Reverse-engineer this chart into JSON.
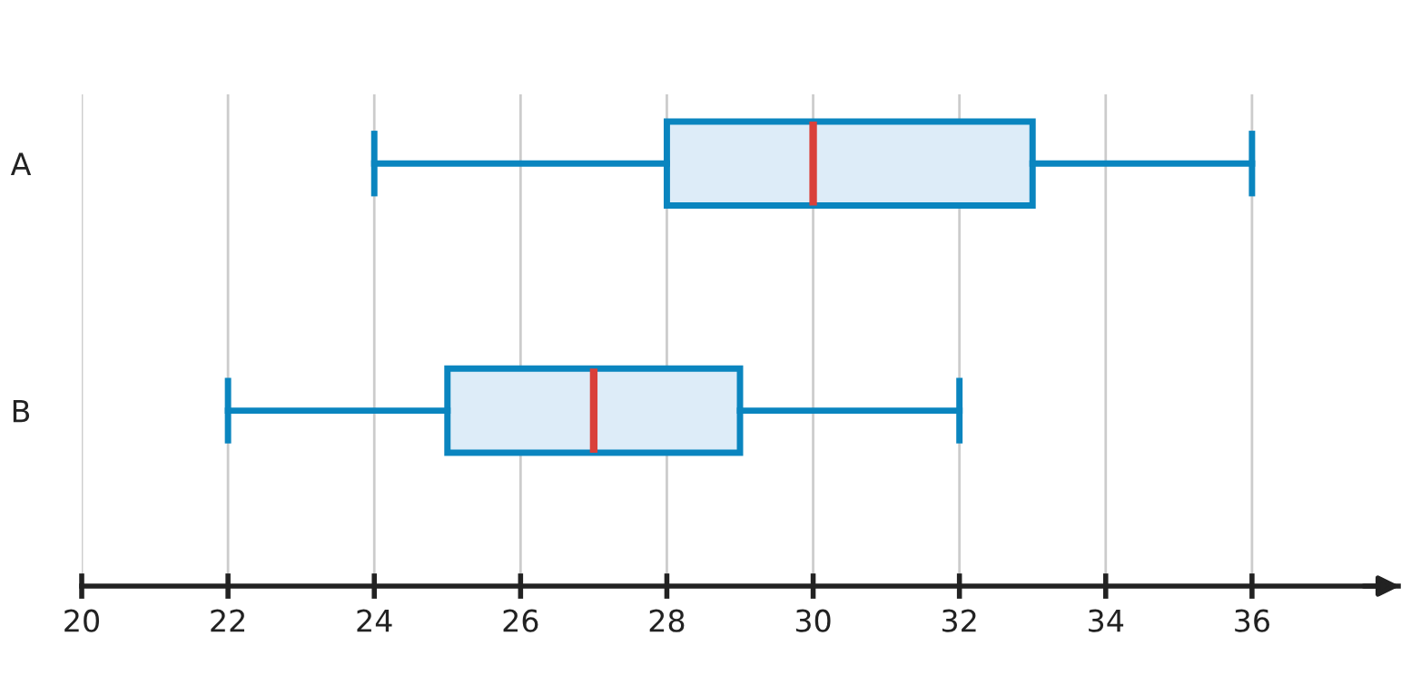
{
  "chart_data": {
    "type": "box",
    "orientation": "horizontal",
    "categories": [
      "A",
      "B"
    ],
    "series": [
      {
        "color": "#0a85bf",
        "boxes": [
          {
            "low": 24,
            "q1": 28,
            "median": 30,
            "q3": 33,
            "high": 36
          },
          {
            "low": 22,
            "q1": 25,
            "median": 27,
            "q3": 29,
            "high": 32
          }
        ]
      }
    ],
    "xlim": [
      20,
      38
    ],
    "xticks": [
      20,
      22,
      24,
      26,
      28,
      30,
      32,
      34,
      36
    ],
    "grid": "x"
  }
}
